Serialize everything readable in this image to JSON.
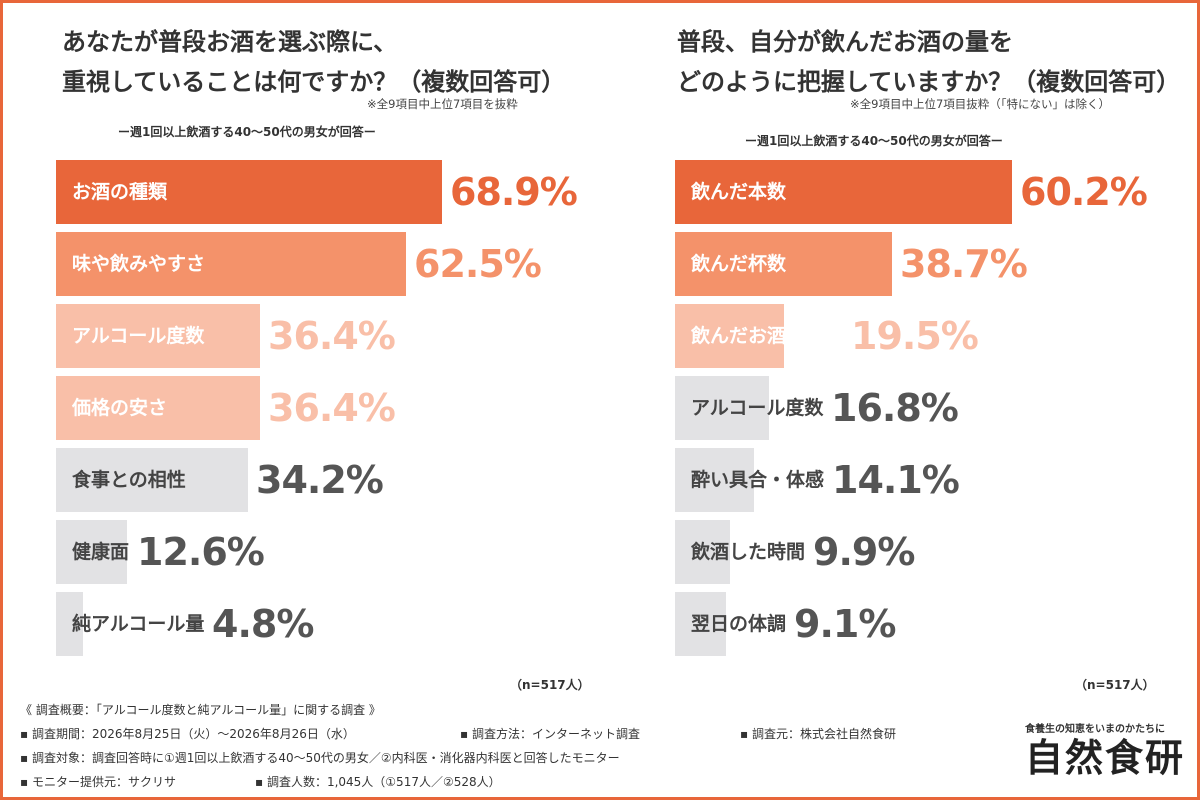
{
  "left": {
    "title_line1": "あなたが普段お酒を選ぶ際に、",
    "title_line2": "重視していることは何ですか？（複数回答可）",
    "note": "※全9項目中上位7項目を抜粋",
    "subtitle": "ー週1回以上飲酒する40〜50代の男女が回答ー",
    "n": "（n=517人）"
  },
  "right": {
    "title_line1": "普段、自分が飲んだお酒の量を",
    "title_line2": "どのように把握していますか？（複数回答可）",
    "note": "※全9項目中上位7項目抜粋（「特にない」は除く）",
    "subtitle": "ー週1回以上飲酒する40〜50代の男女が回答ー",
    "n": "（n=517人）"
  },
  "chart_data": [
    {
      "type": "bar",
      "orientation": "horizontal",
      "categories": [
        "お酒の種類",
        "味や飲みやすさ",
        "アルコール度数",
        "価格の安さ",
        "食事との相性",
        "健康面",
        "純アルコール量"
      ],
      "values": [
        68.9,
        62.5,
        36.4,
        36.4,
        34.2,
        12.6,
        4.8
      ],
      "value_labels": [
        "68.9%",
        "62.5%",
        "36.4%",
        "36.4%",
        "34.2%",
        "12.6%",
        "4.8%"
      ],
      "unit": "%",
      "colors": {
        "bar": [
          "#e8663a",
          "#f4926a",
          "#f9bfa8",
          "#f9bfa8",
          "#e2e2e4",
          "#e2e2e4",
          "#e2e2e4"
        ],
        "label": [
          "#ffffff",
          "#ffffff",
          "#ffffff",
          "#ffffff",
          "#444444",
          "#444444",
          "#444444"
        ],
        "value": [
          "#e8663a",
          "#f4926a",
          "#f9bfa8",
          "#f9bfa8",
          "#555555",
          "#555555",
          "#555555"
        ]
      }
    },
    {
      "type": "bar",
      "orientation": "horizontal",
      "categories": [
        "飲んだ本数",
        "飲んだ杯数",
        "飲んだお酒の容量",
        "アルコール度数",
        "酔い具合・体感",
        "飲酒した時間",
        "翌日の体調"
      ],
      "values": [
        60.2,
        38.7,
        19.5,
        16.8,
        14.1,
        9.9,
        9.1
      ],
      "value_labels": [
        "60.2%",
        "38.7%",
        "19.5%",
        "16.8%",
        "14.1%",
        "9.9%",
        "9.1%"
      ],
      "unit": "%",
      "colors": {
        "bar": [
          "#e8663a",
          "#f4926a",
          "#f9bfa8",
          "#e2e2e4",
          "#e2e2e4",
          "#e2e2e4",
          "#e2e2e4"
        ],
        "label": [
          "#ffffff",
          "#ffffff",
          "#ffffff",
          "#444444",
          "#444444",
          "#444444",
          "#444444"
        ],
        "value": [
          "#e8663a",
          "#f4926a",
          "#f9bfa8",
          "#555555",
          "#555555",
          "#555555",
          "#555555"
        ]
      }
    }
  ],
  "summary": {
    "heading": "《 調査概要：「アルコール度数と純アルコール量」に関する調査 》",
    "period": "▪ 調査期間：2026年8月25日（火）〜2026年8月26日（水）",
    "method": "▪ 調査方法：インターネット調査",
    "source": "▪ 調査元：株式会社自然食研",
    "target": "▪ 調査対象：調査回答時に①週1回以上飲酒する40〜50代の男女／②内科医・消化器内科医と回答したモニター",
    "provider": "▪ モニター提供元：サクリサ",
    "count": "▪ 調査人数：1,045人（①517人／②528人）"
  },
  "logo": {
    "tagline": "食養生の知恵をいまのかたちに",
    "name": "自然食研"
  }
}
